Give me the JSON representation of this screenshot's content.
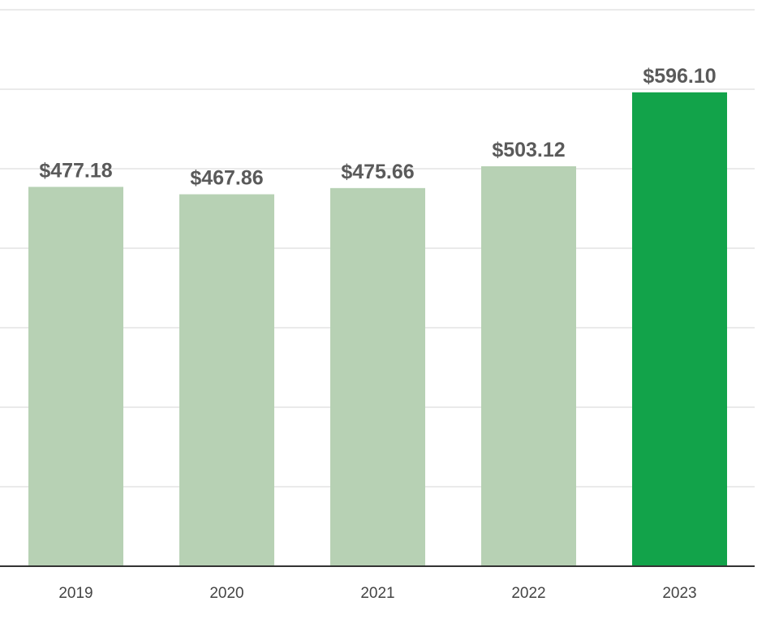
{
  "chart_data": {
    "type": "bar",
    "categories": [
      "2019",
      "2020",
      "2021",
      "2022",
      "2023"
    ],
    "values": [
      477.18,
      467.86,
      475.66,
      503.12,
      596.1
    ],
    "data_labels": [
      "$477.18",
      "$467.86",
      "$475.66",
      "$503.12",
      "$596.10"
    ],
    "highlight_index": 4,
    "title": "",
    "xlabel": "",
    "ylabel": "",
    "ylim": [
      0,
      700
    ],
    "y_gridline_step": 100,
    "y_tick_labels_visible": false,
    "grid": true,
    "legend": "none"
  },
  "colors": {
    "bar": "#b7d1b4",
    "bar_highlight": "#12a34a",
    "grid": "#e4e4e4",
    "baseline": "#333333",
    "value_label": "#5a5a5a",
    "tick_label": "#444444",
    "background": "#ffffff"
  }
}
